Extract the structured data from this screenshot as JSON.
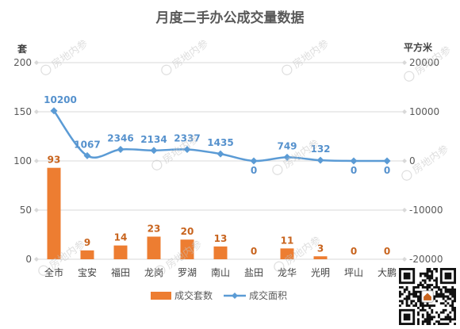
{
  "chart_data": {
    "type": "bar",
    "title": "月度二手办公成交量数据",
    "categories": [
      "全市",
      "宝安",
      "福田",
      "龙岗",
      "罗湖",
      "南山",
      "盐田",
      "龙华",
      "光明",
      "坪山",
      "大鹏"
    ],
    "series": [
      {
        "name": "成交套数",
        "type": "bar",
        "axis": "left",
        "color": "#ED7D31",
        "values": [
          93,
          9,
          14,
          23,
          20,
          13,
          0,
          11,
          3,
          0,
          0
        ]
      },
      {
        "name": "成交面积",
        "type": "line",
        "axis": "right",
        "color": "#5B9BD5",
        "marker": "diamond",
        "smooth": true,
        "values": [
          10200,
          1067,
          2346,
          2134,
          2337,
          1435,
          0,
          749,
          132,
          0,
          0
        ]
      }
    ],
    "ylabel": "套",
    "y2label": "平方米",
    "ylim": [
      0,
      200
    ],
    "yticks": [
      0,
      50,
      100,
      150,
      200
    ],
    "y2lim": [
      -20000,
      20000
    ],
    "y2ticks": [
      -20000,
      -10000,
      0,
      10000,
      20000
    ],
    "grid": true,
    "legend": "bottom",
    "data_labels": true
  },
  "watermark": "房地内参",
  "colors": {
    "bar_label": "#C8641E",
    "line_label": "#5591CD",
    "grid": "#D9D9D9"
  }
}
